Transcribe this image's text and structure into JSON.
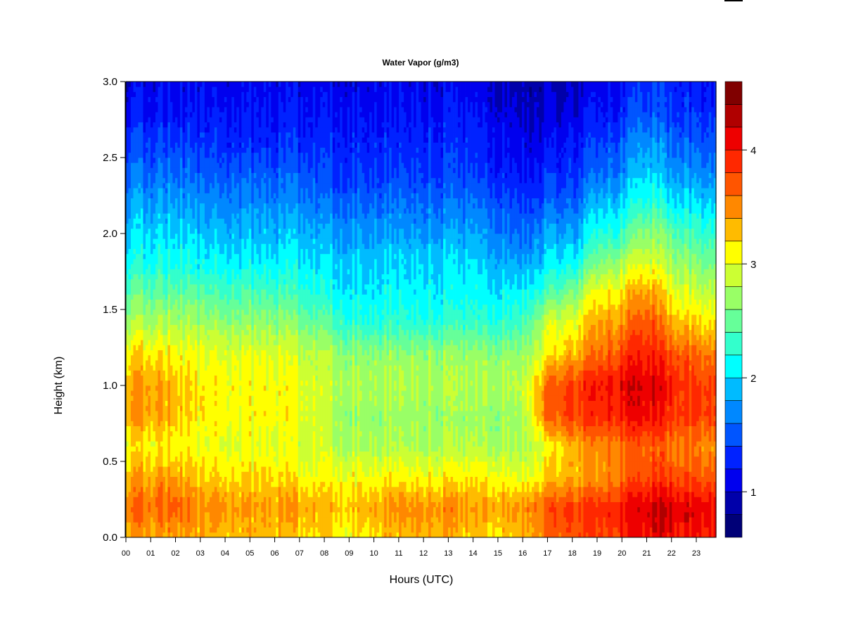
{
  "chart_data": {
    "type": "heatmap",
    "title": "Water Vapor (g/m3)",
    "xlabel": "Hours (UTC)",
    "ylabel": "Height (km)",
    "xlim": [
      0,
      23.8
    ],
    "ylim": [
      0,
      3.0
    ],
    "x_tick_labels": [
      "00",
      "01",
      "02",
      "03",
      "04",
      "05",
      "06",
      "07",
      "08",
      "09",
      "10",
      "11",
      "12",
      "13",
      "14",
      "15",
      "16",
      "17",
      "18",
      "19",
      "20",
      "21",
      "22",
      "23"
    ],
    "y_tick_labels": [
      "0.0",
      "0.5",
      "1.0",
      "1.5",
      "2.0",
      "2.5",
      "3.0"
    ],
    "colorbar": {
      "range": [
        0.6,
        4.6
      ],
      "tick_labels": [
        "1",
        "2",
        "3",
        "4"
      ],
      "levels": [
        0.6,
        0.8,
        1.0,
        1.2,
        1.4,
        1.6,
        1.8,
        2.0,
        2.2,
        2.4,
        2.6,
        2.8,
        3.0,
        3.2,
        3.4,
        3.6,
        3.8,
        4.0,
        4.2,
        4.4
      ],
      "colors": [
        "#000077",
        "#0000AA",
        "#0000EE",
        "#0022FF",
        "#0055FF",
        "#0088FF",
        "#00BBFF",
        "#00FFFF",
        "#33FFCC",
        "#66FF99",
        "#99FF66",
        "#CCFF33",
        "#FFFF00",
        "#FFBB00",
        "#FF8800",
        "#FF5500",
        "#FF2800",
        "#EE0000",
        "#B00000",
        "#800000"
      ]
    },
    "x": [
      0,
      1,
      2,
      3,
      4,
      5,
      6,
      7,
      8,
      9,
      10,
      11,
      12,
      13,
      14,
      15,
      16,
      17,
      18,
      19,
      20,
      21,
      22,
      23
    ],
    "y": [
      0,
      0.2,
      0.4,
      0.6,
      0.8,
      1.0,
      1.2,
      1.4,
      1.6,
      1.8,
      2.0,
      2.2,
      2.4,
      2.6,
      2.8,
      3.0
    ],
    "z": [
      [
        3.4,
        3.6,
        3.4,
        3.1,
        3.4,
        3.4,
        3.2,
        2.8,
        2.5,
        2.2,
        2.0,
        1.8,
        1.6,
        1.4,
        1.2,
        1.1
      ],
      [
        3.4,
        3.6,
        3.4,
        3.1,
        3.4,
        3.4,
        3.2,
        2.8,
        2.5,
        2.2,
        2.0,
        1.8,
        1.6,
        1.4,
        1.2,
        1.1
      ],
      [
        3.4,
        3.7,
        3.4,
        3.1,
        3.3,
        3.3,
        3.1,
        2.8,
        2.5,
        2.2,
        2.0,
        1.8,
        1.6,
        1.4,
        1.2,
        1.1
      ],
      [
        3.3,
        3.4,
        3.2,
        3.0,
        3.1,
        3.1,
        3.0,
        2.7,
        2.4,
        2.1,
        1.9,
        1.7,
        1.5,
        1.3,
        1.2,
        1.1
      ],
      [
        3.3,
        3.5,
        3.2,
        3.0,
        3.1,
        3.1,
        3.0,
        2.7,
        2.4,
        2.1,
        1.9,
        1.7,
        1.5,
        1.3,
        1.2,
        1.1
      ],
      [
        3.3,
        3.4,
        3.2,
        3.0,
        3.1,
        3.1,
        3.0,
        2.7,
        2.4,
        2.1,
        1.9,
        1.7,
        1.5,
        1.3,
        1.2,
        1.1
      ],
      [
        3.3,
        3.4,
        3.2,
        3.0,
        3.1,
        3.1,
        3.0,
        2.7,
        2.4,
        2.1,
        1.9,
        1.7,
        1.5,
        1.3,
        1.2,
        1.1
      ],
      [
        3.2,
        3.4,
        3.1,
        2.9,
        3.0,
        3.0,
        2.9,
        2.6,
        2.3,
        2.1,
        1.9,
        1.7,
        1.5,
        1.3,
        1.2,
        1.1
      ],
      [
        3.2,
        3.3,
        3.1,
        2.9,
        2.9,
        2.9,
        2.8,
        2.5,
        2.2,
        2.0,
        1.8,
        1.6,
        1.4,
        1.3,
        1.2,
        1.1
      ],
      [
        3.1,
        3.3,
        3.1,
        2.8,
        2.7,
        2.8,
        2.7,
        2.3,
        2.1,
        2.0,
        1.8,
        1.6,
        1.4,
        1.3,
        1.2,
        1.1
      ],
      [
        3.2,
        3.4,
        3.1,
        2.8,
        2.7,
        2.8,
        2.7,
        2.3,
        2.1,
        2.0,
        1.8,
        1.6,
        1.4,
        1.3,
        1.2,
        1.1
      ],
      [
        3.3,
        3.5,
        3.1,
        2.8,
        2.7,
        2.8,
        2.7,
        2.3,
        2.1,
        2.0,
        1.8,
        1.6,
        1.4,
        1.3,
        1.2,
        1.1
      ],
      [
        3.4,
        3.5,
        3.1,
        2.8,
        2.7,
        2.8,
        2.7,
        2.3,
        2.1,
        2.0,
        1.8,
        1.6,
        1.4,
        1.3,
        1.2,
        1.1
      ],
      [
        3.3,
        3.5,
        3.1,
        2.8,
        2.7,
        2.8,
        2.7,
        2.3,
        2.1,
        2.0,
        1.8,
        1.6,
        1.4,
        1.3,
        1.2,
        1.1
      ],
      [
        3.2,
        3.4,
        3.1,
        2.8,
        2.7,
        2.8,
        2.7,
        2.3,
        2.1,
        2.0,
        1.8,
        1.6,
        1.4,
        1.3,
        1.2,
        1.1
      ],
      [
        3.2,
        3.4,
        3.1,
        2.8,
        2.7,
        2.8,
        2.7,
        2.3,
        2.1,
        1.9,
        1.7,
        1.5,
        1.3,
        1.2,
        1.1,
        1.0
      ],
      [
        3.3,
        3.5,
        3.0,
        2.8,
        2.8,
        2.9,
        2.7,
        2.4,
        2.1,
        1.8,
        1.6,
        1.4,
        1.2,
        1.1,
        1.0,
        0.9
      ],
      [
        3.6,
        3.7,
        3.2,
        3.0,
        3.6,
        3.6,
        3.1,
        2.9,
        2.4,
        2.0,
        1.8,
        1.5,
        1.3,
        1.1,
        1.0,
        0.9
      ],
      [
        3.7,
        3.8,
        3.3,
        3.3,
        3.8,
        3.8,
        3.3,
        3.0,
        2.6,
        2.1,
        1.8,
        1.5,
        1.3,
        1.2,
        1.0,
        0.9
      ],
      [
        3.8,
        3.9,
        3.4,
        3.5,
        3.9,
        4.0,
        3.6,
        3.4,
        3.1,
        2.6,
        2.2,
        1.9,
        1.6,
        1.4,
        1.2,
        1.1
      ],
      [
        3.9,
        4.0,
        3.6,
        3.6,
        4.0,
        4.1,
        3.8,
        3.5,
        3.2,
        2.8,
        2.3,
        2.0,
        1.7,
        1.5,
        1.3,
        1.2
      ],
      [
        4.1,
        4.2,
        3.8,
        3.7,
        4.1,
        4.2,
        4.0,
        3.8,
        3.5,
        3.0,
        2.7,
        2.3,
        2.0,
        1.8,
        1.5,
        1.4
      ],
      [
        4.1,
        4.2,
        3.8,
        3.6,
        3.9,
        4.0,
        3.8,
        3.4,
        3.1,
        2.8,
        2.5,
        2.1,
        1.8,
        1.6,
        1.4,
        1.3
      ],
      [
        4.0,
        4.1,
        3.7,
        3.5,
        3.8,
        3.8,
        3.6,
        3.2,
        2.9,
        2.6,
        2.3,
        2.0,
        1.7,
        1.5,
        1.3,
        1.2
      ]
    ],
    "grid": false,
    "legend": "colorbar-right"
  }
}
